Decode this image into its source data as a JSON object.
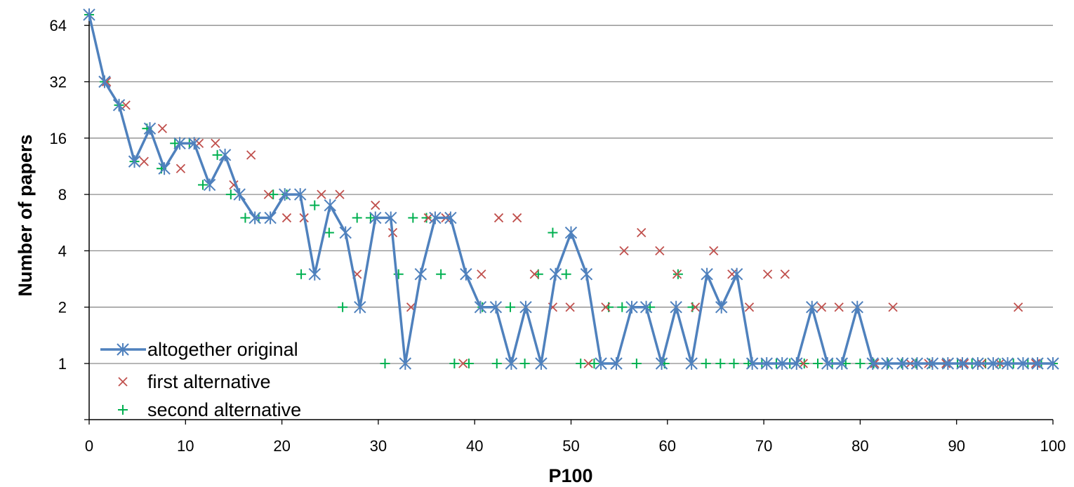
{
  "chart_data": {
    "type": "line",
    "title": "",
    "xlabel": "P100",
    "ylabel": "Number of papers",
    "xlim": [
      0,
      100
    ],
    "ylim": [
      0.5,
      80
    ],
    "y_scale": "log2",
    "x_ticks": [
      0,
      10,
      20,
      30,
      40,
      50,
      60,
      70,
      80,
      90,
      100
    ],
    "y_ticks": [
      1,
      2,
      4,
      8,
      16,
      32,
      64
    ],
    "grid": "horizontal",
    "legend_position": "bottom-left",
    "colors": {
      "altogether original": "#4f81bd",
      "first alternative": "#c0504d",
      "second alternative": "#00b050"
    },
    "series": [
      {
        "name": "altogether original",
        "marker": "asterisk",
        "line": true,
        "x": [
          0,
          1.6,
          3.1,
          4.7,
          6.3,
          7.8,
          9.4,
          10.9,
          12.5,
          14.1,
          15.6,
          17.2,
          18.8,
          20.3,
          21.9,
          23.4,
          25.0,
          26.6,
          28.1,
          29.7,
          31.3,
          32.8,
          34.4,
          35.9,
          37.5,
          39.1,
          40.6,
          42.2,
          43.8,
          45.3,
          46.9,
          48.4,
          50.0,
          51.6,
          53.1,
          54.7,
          56.3,
          57.8,
          59.4,
          60.9,
          62.5,
          64.1,
          65.6,
          67.2,
          68.8,
          70.3,
          71.9,
          73.4,
          75.0,
          76.6,
          78.1,
          79.7,
          81.3,
          82.8,
          84.4,
          85.9,
          87.5,
          89.1,
          90.6,
          92.2,
          93.8,
          95.3,
          96.9,
          98.4,
          100
        ],
        "y": [
          73,
          32,
          24,
          12,
          18,
          11,
          15,
          15,
          9,
          13,
          8,
          6,
          6,
          8,
          8,
          3,
          7,
          5,
          2,
          6,
          6,
          1,
          3,
          6,
          6,
          3,
          2,
          2,
          1,
          2,
          1,
          3,
          5,
          3,
          1,
          1,
          2,
          2,
          1,
          2,
          1,
          3,
          2,
          3,
          1,
          1,
          1,
          1,
          2,
          1,
          1,
          2,
          1,
          1,
          1,
          1,
          1,
          1,
          1,
          1,
          1,
          1,
          1,
          1,
          1
        ]
      },
      {
        "name": "first alternative",
        "marker": "x",
        "line": false,
        "x": [
          0,
          1.8,
          3.8,
          5.7,
          7.6,
          9.5,
          11.4,
          13.1,
          15.0,
          16.8,
          18.6,
          20.5,
          22.3,
          24.1,
          26.0,
          27.8,
          29.7,
          31.5,
          33.4,
          35.2,
          37.0,
          38.8,
          40.7,
          42.5,
          44.4,
          46.2,
          48.1,
          49.9,
          51.8,
          53.6,
          55.5,
          57.3,
          59.2,
          61.0,
          62.9,
          64.8,
          66.7,
          68.5,
          70.4,
          72.2,
          74.1,
          76.0,
          77.8,
          79.7,
          81.5,
          83.4,
          85.2,
          87.1,
          88.9,
          90.8,
          92.6,
          94.5,
          96.4,
          98.2,
          100
        ],
        "y": [
          73,
          32,
          24,
          12,
          18,
          11,
          15,
          15,
          9,
          13,
          8,
          6,
          6,
          8,
          8,
          3,
          7,
          5,
          2,
          6,
          6,
          1,
          3,
          6,
          6,
          3,
          2,
          2,
          1,
          2,
          4,
          5,
          4,
          3,
          2,
          4,
          3,
          2,
          3,
          3,
          1,
          2,
          2,
          2,
          1,
          2,
          1,
          1,
          1,
          1,
          1,
          1,
          2,
          1,
          1
        ]
      },
      {
        "name": "second alternative",
        "marker": "plus",
        "line": false,
        "x": [
          0,
          1.6,
          3.1,
          4.7,
          6.0,
          7.5,
          8.9,
          10.4,
          11.8,
          13.3,
          14.7,
          16.2,
          17.6,
          19.1,
          20.5,
          22.0,
          23.4,
          24.9,
          26.3,
          27.8,
          29.2,
          30.7,
          32.1,
          33.6,
          35.0,
          36.5,
          37.9,
          39.4,
          40.8,
          42.3,
          43.7,
          45.2,
          46.6,
          48.1,
          49.5,
          51.0,
          52.4,
          53.9,
          55.3,
          56.8,
          58.2,
          59.7,
          61.1,
          62.6,
          64.0,
          65.5,
          66.9,
          68.4,
          69.8,
          71.3,
          72.7,
          74.2,
          75.6,
          77.1,
          78.5,
          80.0,
          81.4,
          82.9,
          84.3,
          85.8,
          87.2,
          88.7,
          90.1,
          91.6,
          93.0,
          94.5,
          95.9,
          97.4,
          98.8,
          100
        ],
        "y": [
          73,
          32,
          24,
          12,
          18,
          11,
          15,
          15,
          9,
          13,
          8,
          6,
          6,
          8,
          8,
          3,
          7,
          5,
          2,
          6,
          6,
          1,
          3,
          6,
          6,
          3,
          1,
          1,
          2,
          1,
          2,
          1,
          3,
          5,
          3,
          1,
          1,
          2,
          2,
          1,
          2,
          1,
          3,
          2,
          1,
          1,
          1,
          1,
          1,
          1,
          1,
          1,
          1,
          1,
          1,
          1,
          1,
          1,
          1,
          1,
          1,
          1,
          1,
          1,
          1,
          1,
          1,
          1,
          1,
          1
        ]
      }
    ]
  }
}
